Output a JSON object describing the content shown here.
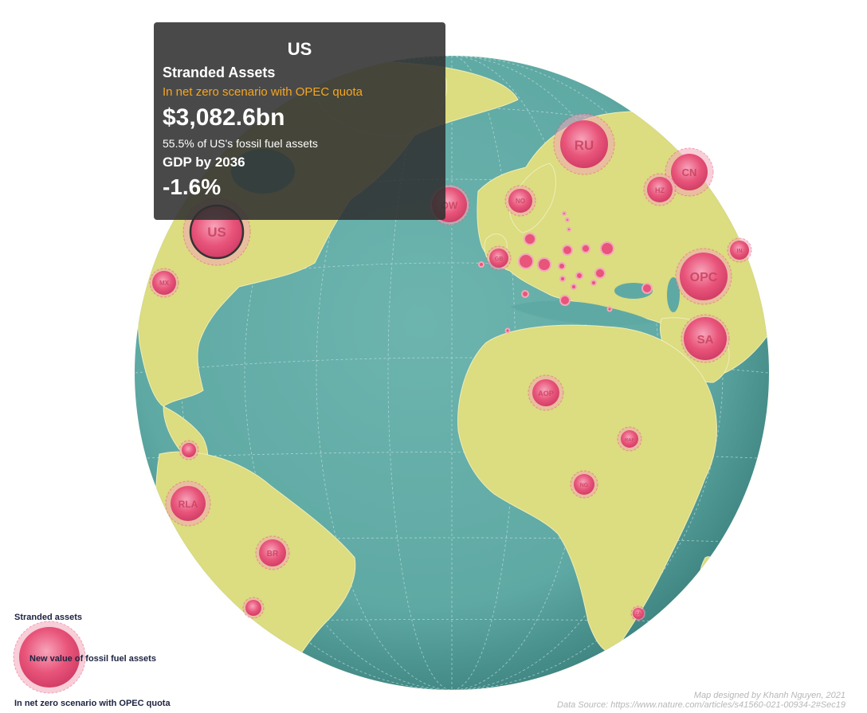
{
  "colors": {
    "ocean": "#5fa9a4",
    "ocean_edge": "#3f8582",
    "land": "#dcdc80",
    "bubble": "#e8547a",
    "bubble_ring": "#f3a7ba",
    "tooltip_bg": "#303030",
    "scenario_text": "#f5a623"
  },
  "tooltip": {
    "country": "US",
    "heading": "Stranded Assets",
    "scenario": "In net zero scenario with OPEC quota",
    "value": "$3,082.6bn",
    "share": "55.5% of US's fossil fuel assets",
    "gdp_label": "GDP by 2036",
    "gdp_value": "-1.6%"
  },
  "bubbles": [
    {
      "label": "US",
      "size": 3082.6,
      "selected": true
    },
    {
      "label": "RU",
      "size": 1600
    },
    {
      "label": "CN",
      "size": 900
    },
    {
      "label": "HZ",
      "size": 450
    },
    {
      "label": "OPC",
      "size": 1700
    },
    {
      "label": "SA",
      "size": 1100
    },
    {
      "label": "MX",
      "size": 420
    },
    {
      "label": "RLA",
      "size": 950
    },
    {
      "label": "BR",
      "size": 570
    },
    {
      "label": "AOP",
      "size": 600
    },
    {
      "label": "NO",
      "size": 420
    },
    {
      "label": "OW",
      "size": 800
    },
    {
      "label": "NG",
      "size": 330
    },
    {
      "label": "RAF",
      "size": 270
    },
    {
      "label": "ZA",
      "size": 120
    },
    {
      "label": "GB",
      "size": 300
    },
    {
      "label": "IN",
      "size": 300
    },
    {
      "label": "",
      "size": 180
    },
    {
      "label": "",
      "size": 190
    }
  ],
  "legend": {
    "title": "Stranded assets",
    "bubble_label": "New value of fossil fuel assets",
    "scenario": "In net zero scenario with OPEC quota"
  },
  "credits": {
    "designer": "Map designed by Khanh Nguyen, 2021",
    "source": "Data Source: https://www.nature.com/articles/s41560-021-00934-2#Sec19"
  }
}
